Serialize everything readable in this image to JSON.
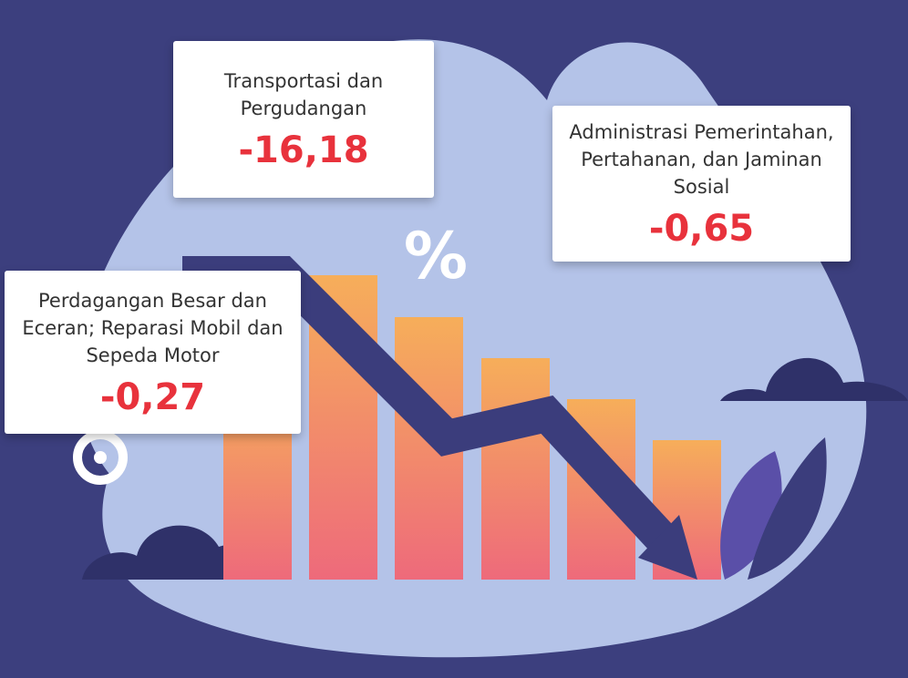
{
  "cards": [
    {
      "label": "Transportasi dan Pergudangan",
      "value": "-16,18"
    },
    {
      "label": "Administrasi Pemerintahan, Pertahanan, dan Jaminan Sosial",
      "value": "-0,65"
    },
    {
      "label": "Perdagangan Besar dan Eceran; Reparasi Mobil dan Sepeda Motor",
      "value": "-0,27"
    }
  ]
}
